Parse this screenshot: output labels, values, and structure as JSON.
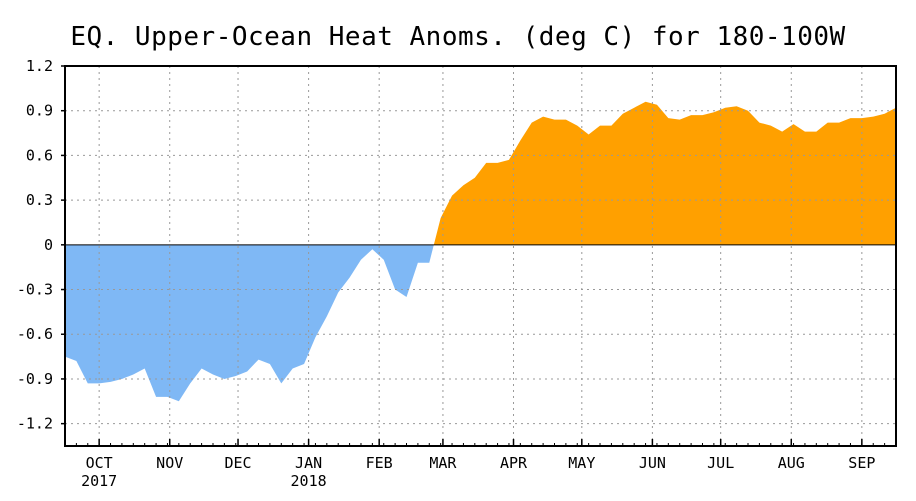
{
  "title": "EQ. Upper-Ocean Heat Anoms. (deg C) for 180-100W",
  "colors": {
    "positive": "#FFA000",
    "negative": "#7FB8F5",
    "axis": "#000000",
    "grid": "#999999"
  },
  "chart_data": {
    "type": "area",
    "title": "EQ. Upper-Ocean Heat Anoms. (deg C) for 180-100W",
    "xlabel": "",
    "ylabel": "",
    "ylim": [
      -1.35,
      1.2
    ],
    "yticks": [
      1.2,
      0.9,
      0.6,
      0.3,
      0,
      -0.3,
      -0.6,
      -0.9,
      -1.2
    ],
    "ytick_labels": [
      "1.2",
      "0.9",
      "0.6",
      "0.3",
      "0",
      "-0.3",
      "-0.6",
      "-0.9",
      "-1.2"
    ],
    "xlim": [
      "2017-09-16",
      "2018-09-16"
    ],
    "xticks": [
      {
        "date": "2017-10-01",
        "label": "OCT",
        "sublabel": "2017"
      },
      {
        "date": "2017-11-01",
        "label": "NOV",
        "sublabel": ""
      },
      {
        "date": "2017-12-01",
        "label": "DEC",
        "sublabel": ""
      },
      {
        "date": "2018-01-01",
        "label": "JAN",
        "sublabel": "2018"
      },
      {
        "date": "2018-02-01",
        "label": "FEB",
        "sublabel": ""
      },
      {
        "date": "2018-03-01",
        "label": "MAR",
        "sublabel": ""
      },
      {
        "date": "2018-04-01",
        "label": "APR",
        "sublabel": ""
      },
      {
        "date": "2018-05-01",
        "label": "MAY",
        "sublabel": ""
      },
      {
        "date": "2018-06-01",
        "label": "JUN",
        "sublabel": ""
      },
      {
        "date": "2018-07-01",
        "label": "JUL",
        "sublabel": ""
      },
      {
        "date": "2018-08-01",
        "label": "AUG",
        "sublabel": ""
      },
      {
        "date": "2018-09-01",
        "label": "SEP",
        "sublabel": ""
      }
    ],
    "grid": true,
    "fill": {
      "above_zero": "#FFA000",
      "below_zero": "#7FB8F5"
    },
    "series": [
      {
        "x": [
          "2017-09-16",
          "2017-09-21",
          "2017-09-26",
          "2017-10-01",
          "2017-10-06",
          "2017-10-11",
          "2017-10-16",
          "2017-10-21",
          "2017-10-26",
          "2017-10-31",
          "2017-11-05",
          "2017-11-10",
          "2017-11-15",
          "2017-11-20",
          "2017-11-25",
          "2017-11-30",
          "2017-12-05",
          "2017-12-10",
          "2017-12-15",
          "2017-12-20",
          "2017-12-25",
          "2017-12-30",
          "2018-01-04",
          "2018-01-09",
          "2018-01-14",
          "2018-01-19",
          "2018-01-24",
          "2018-01-29",
          "2018-02-03",
          "2018-02-08",
          "2018-02-13",
          "2018-02-18",
          "2018-02-23",
          "2018-02-28",
          "2018-03-05",
          "2018-03-10",
          "2018-03-15",
          "2018-03-20",
          "2018-03-25",
          "2018-03-30",
          "2018-04-04",
          "2018-04-09",
          "2018-04-14",
          "2018-04-19",
          "2018-04-24",
          "2018-04-29",
          "2018-05-04",
          "2018-05-09",
          "2018-05-14",
          "2018-05-19",
          "2018-05-24",
          "2018-05-29",
          "2018-06-03",
          "2018-06-08",
          "2018-06-13",
          "2018-06-18",
          "2018-06-23",
          "2018-06-28",
          "2018-07-03",
          "2018-07-08",
          "2018-07-13",
          "2018-07-18",
          "2018-07-23",
          "2018-07-28",
          "2018-08-02",
          "2018-08-07",
          "2018-08-12",
          "2018-08-17",
          "2018-08-22",
          "2018-08-27",
          "2018-09-01",
          "2018-09-06",
          "2018-09-11",
          "2018-09-16"
        ],
        "values": [
          -0.75,
          -0.78,
          -0.93,
          -0.93,
          -0.92,
          -0.9,
          -0.87,
          -0.83,
          -1.02,
          -1.02,
          -1.05,
          -0.93,
          -0.83,
          -0.87,
          -0.9,
          -0.88,
          -0.85,
          -0.77,
          -0.8,
          -0.93,
          -0.83,
          -0.8,
          -0.62,
          -0.48,
          -0.32,
          -0.22,
          -0.1,
          -0.03,
          -0.1,
          -0.3,
          -0.35,
          -0.12,
          -0.12,
          0.18,
          0.33,
          0.4,
          0.45,
          0.55,
          0.55,
          0.57,
          0.7,
          0.82,
          0.86,
          0.84,
          0.84,
          0.8,
          0.74,
          0.8,
          0.8,
          0.88,
          0.92,
          0.96,
          0.94,
          0.85,
          0.84,
          0.87,
          0.87,
          0.89,
          0.92,
          0.93,
          0.9,
          0.82,
          0.8,
          0.76,
          0.81,
          0.76,
          0.76,
          0.82,
          0.82,
          0.85,
          0.85,
          0.86,
          0.88,
          0.92
        ]
      }
    ]
  }
}
